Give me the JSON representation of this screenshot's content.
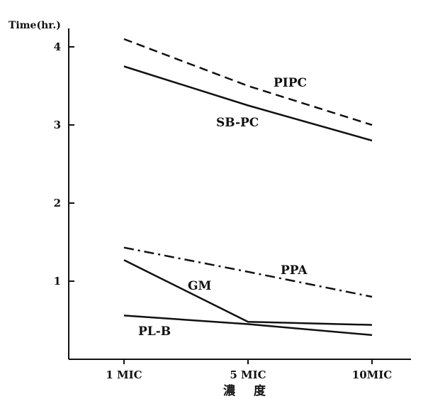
{
  "chart_data": {
    "type": "line",
    "title": "",
    "ylabel": "Time(hr.)",
    "xlabel": "濃  度",
    "categories": [
      "1 MIC",
      "5 MIC",
      "10MIC"
    ],
    "yticks": [
      "1",
      "2",
      "3",
      "4"
    ],
    "ylim": [
      0,
      4.3
    ],
    "grid": false,
    "series": [
      {
        "name": "PIPC",
        "values": [
          4.1,
          3.5,
          3.0
        ],
        "style": "dashed"
      },
      {
        "name": "SB-PC",
        "values": [
          3.75,
          3.25,
          2.8
        ],
        "style": "solid"
      },
      {
        "name": "PPA",
        "values": [
          1.43,
          1.12,
          0.8
        ],
        "style": "dashdot"
      },
      {
        "name": "GM",
        "values": [
          1.27,
          0.48,
          0.44
        ],
        "style": "solid"
      },
      {
        "name": "PL-B",
        "values": [
          0.56,
          0.45,
          0.31
        ],
        "style": "solid"
      }
    ]
  }
}
